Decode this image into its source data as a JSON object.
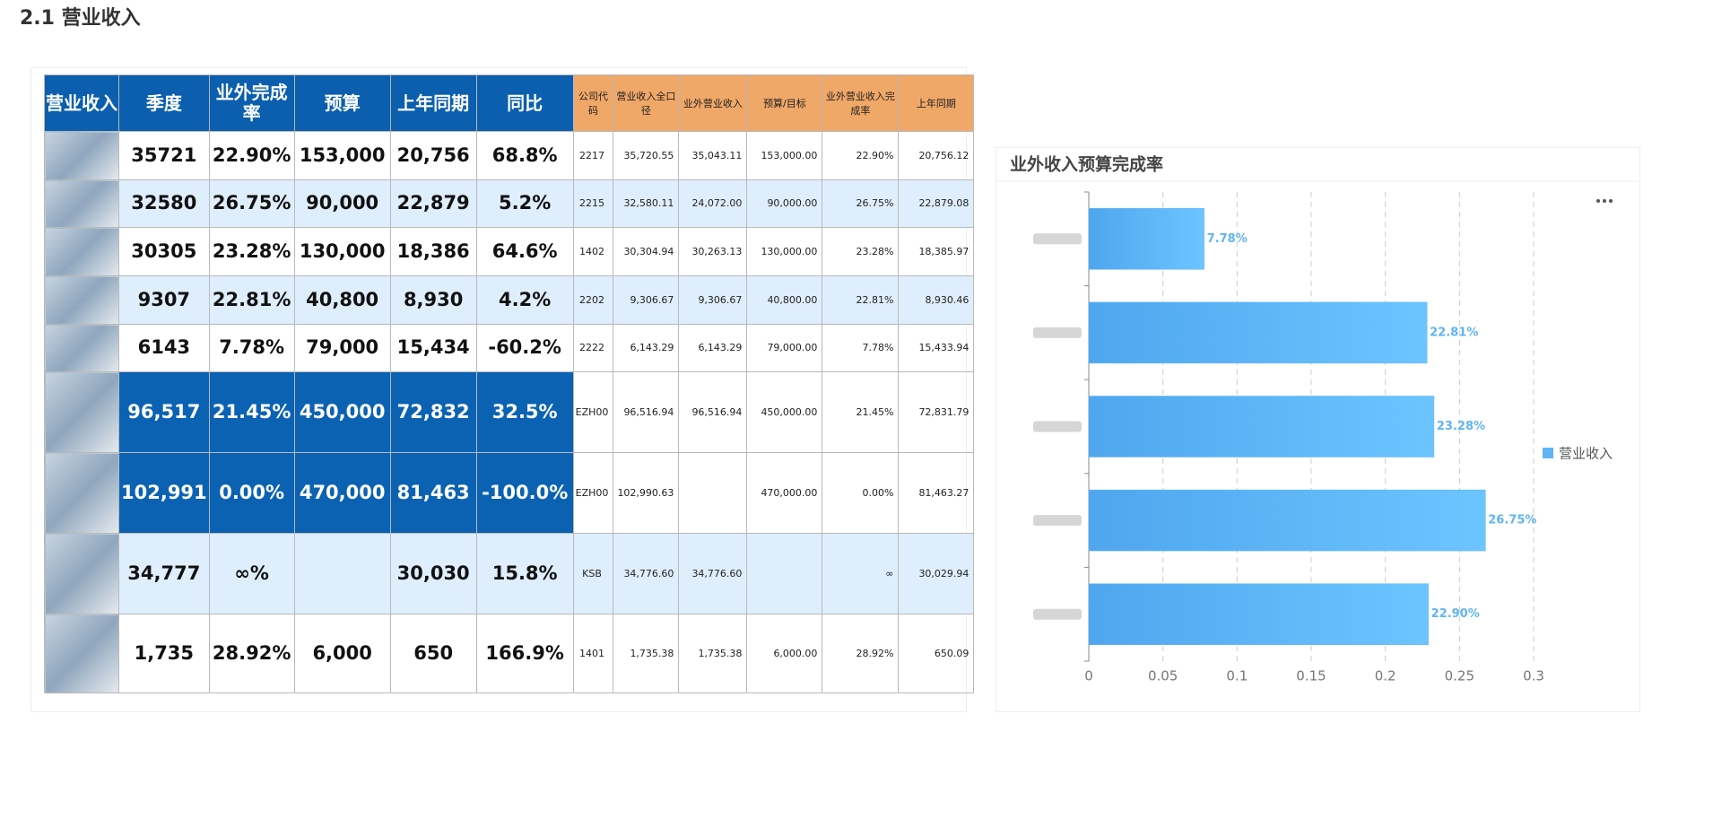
{
  "header": {
    "title": "2.1 营业收入"
  },
  "table": {
    "headers": [
      "营业收入",
      "季度",
      "业外完成率",
      "预算",
      "上年同期",
      "同比",
      "公司代码",
      "营业收入全口径",
      "业外营业收入",
      "预算/目标",
      "业外营业收入完成率",
      "上年同期"
    ],
    "rows": [
      [
        null,
        "35721",
        "22.90%",
        "153,000",
        "20,756",
        "68.8%",
        "2217",
        "35,720.55",
        "35,043.11",
        "153,000.00",
        "22.90%",
        "20,756.12"
      ],
      [
        null,
        "32580",
        "26.75%",
        "90,000",
        "22,879",
        "5.2%",
        "2215",
        "32,580.11",
        "24,072.00",
        "90,000.00",
        "26.75%",
        "22,879.08"
      ],
      [
        null,
        "30305",
        "23.28%",
        "130,000",
        "18,386",
        "64.6%",
        "1402",
        "30,304.94",
        "30,263.13",
        "130,000.00",
        "23.28%",
        "18,385.97"
      ],
      [
        null,
        "9307",
        "22.81%",
        "40,800",
        "8,930",
        "4.2%",
        "2202",
        "9,306.67",
        "9,306.67",
        "40,800.00",
        "22.81%",
        "8,930.46"
      ],
      [
        null,
        "6143",
        "7.78%",
        "79,000",
        "15,434",
        "-60.2%",
        "2222",
        "6,143.29",
        "6,143.29",
        "79,000.00",
        "7.78%",
        "15,433.94"
      ],
      [
        null,
        "96,517",
        "21.45%",
        "450,000",
        "72,832",
        "32.5%",
        "EZH00",
        "96,516.94",
        "96,516.94",
        "450,000.00",
        "21.45%",
        "72,831.79"
      ],
      [
        null,
        "102,991",
        "0.00%",
        "470,000",
        "81,463",
        "-100.0%",
        "EZH00",
        "102,990.63",
        null,
        "470,000.00",
        "0.00%",
        "81,463.27"
      ],
      [
        null,
        "34,777",
        "∞%",
        null,
        "30,030",
        "15.8%",
        "KSB",
        "34,776.60",
        "34,776.60",
        null,
        "∞",
        "30,029.94"
      ],
      [
        null,
        "1,735",
        "28.92%",
        "6,000",
        "650",
        "166.9%",
        "1401",
        "1,735.38",
        "1,735.38",
        "6,000.00",
        "28.92%",
        "650.09"
      ]
    ]
  },
  "chart_data": {
    "type": "bar",
    "orientation": "horizontal",
    "title": "业外收入预算完成率",
    "categories": [
      null,
      null,
      null,
      null,
      null
    ],
    "series": [
      {
        "name": "营业收入",
        "color": "#5fb4f5",
        "values": [
          0.0778,
          0.2281,
          0.2328,
          0.2675,
          0.229
        ],
        "value_labels": [
          "7.78%",
          "22.81%",
          "23.28%",
          "26.75%",
          "22.90%"
        ]
      }
    ],
    "xlim": [
      0,
      0.3
    ],
    "xticks": [
      0,
      0.05,
      0.1,
      0.15,
      0.2,
      0.25,
      0.3
    ],
    "grid": true,
    "legend": "right"
  }
}
